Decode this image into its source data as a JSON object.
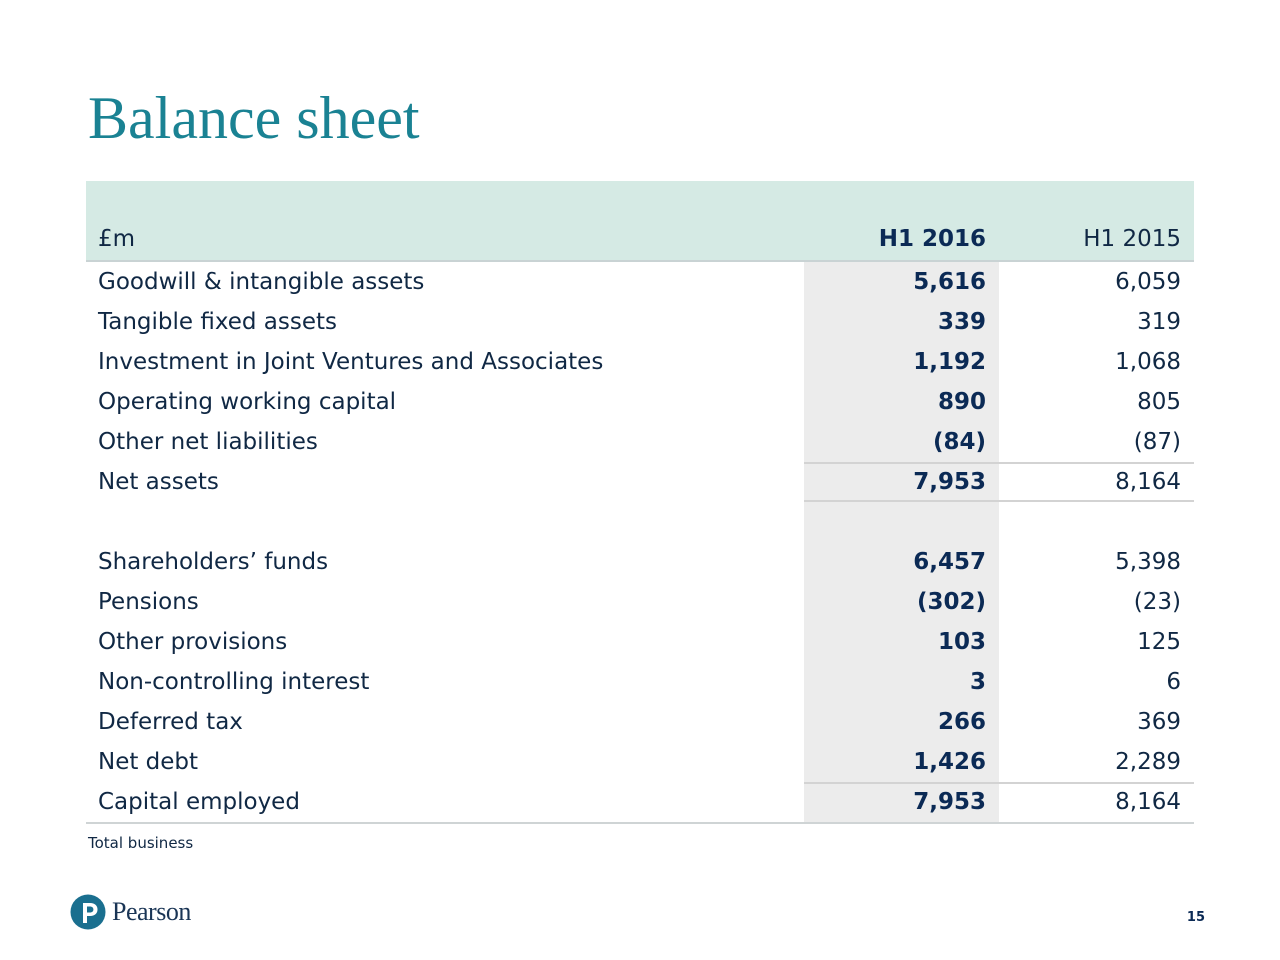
{
  "title": "Balance sheet",
  "table": {
    "header": {
      "label": "£m",
      "col_h1_2016": "H1 2016",
      "col_h1_2015": "H1 2015"
    },
    "assets": [
      {
        "label": "Goodwill & intangible assets",
        "h1_2016": "5,616",
        "h1_2015": "6,059"
      },
      {
        "label": "Tangible fixed assets",
        "h1_2016": "339",
        "h1_2015": "319"
      },
      {
        "label": "Investment in Joint Ventures and Associates",
        "h1_2016": "1,192",
        "h1_2015": "1,068"
      },
      {
        "label": "Operating working capital",
        "h1_2016": "890",
        "h1_2015": "805"
      },
      {
        "label": "Other net liabilities",
        "h1_2016": "(84)",
        "h1_2015": "(87)"
      }
    ],
    "net_assets": {
      "label": "Net assets",
      "h1_2016": "7,953",
      "h1_2015": "8,164"
    },
    "funding": [
      {
        "label": "Shareholders’ funds",
        "h1_2016": "6,457",
        "h1_2015": "5,398"
      },
      {
        "label": "Pensions",
        "h1_2016": "(302)",
        "h1_2015": "(23)"
      },
      {
        "label": "Other provisions",
        "h1_2016": "103",
        "h1_2015": "125"
      },
      {
        "label": "Non-controlling interest",
        "h1_2016": "3",
        "h1_2015": "6"
      },
      {
        "label": "Deferred tax",
        "h1_2016": "266",
        "h1_2015": "369"
      },
      {
        "label": "Net debt",
        "h1_2016": "1,426",
        "h1_2015": "2,289"
      }
    ],
    "capital_employed": {
      "label": "Capital employed",
      "h1_2016": "7,953",
      "h1_2015": "8,164"
    }
  },
  "footnote": "Total business",
  "logo": {
    "text": "Pearson",
    "icon": "pearson-p-icon"
  },
  "page_number": "15",
  "colors": {
    "title": "#1a8293",
    "header_bg": "#d5eae4",
    "highlight_col": "#ececec",
    "text": "#102844",
    "bold_values": "#0b2a55",
    "logo_mark": "#1a6f8f"
  }
}
